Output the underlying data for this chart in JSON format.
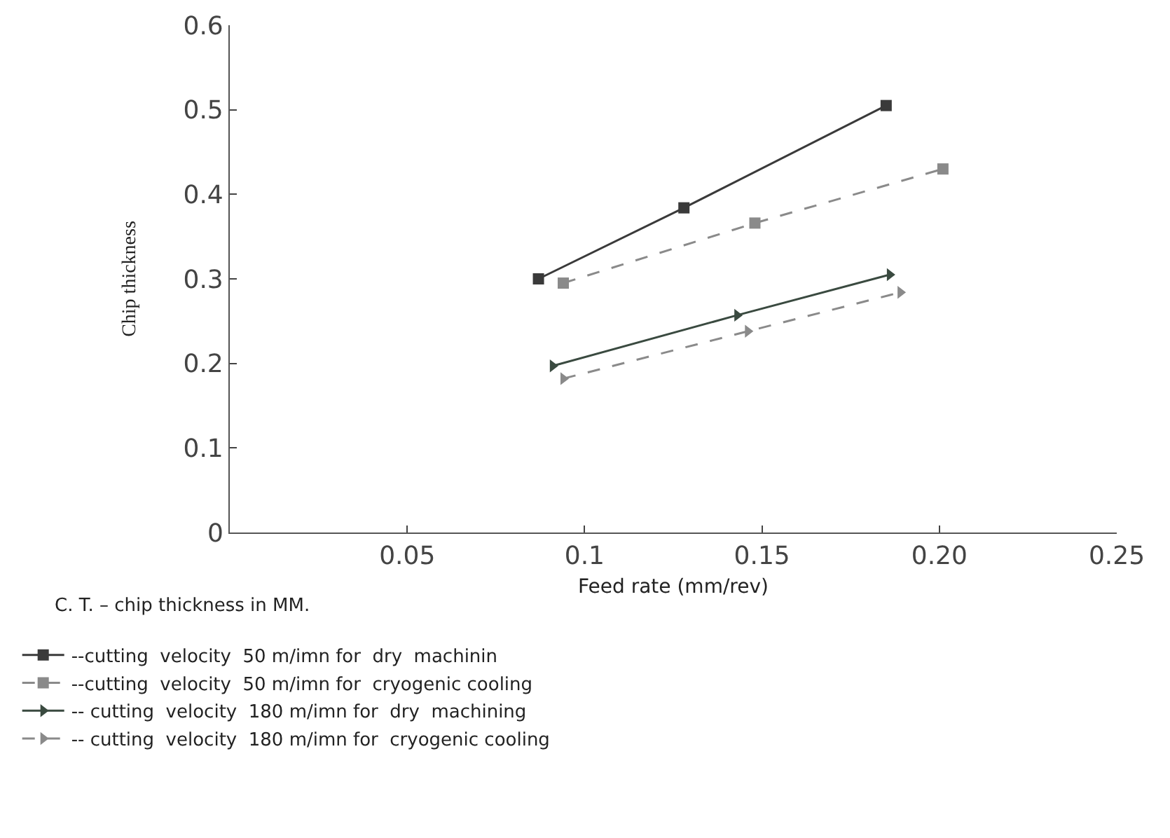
{
  "chart_data": {
    "type": "line",
    "xlabel": "Feed rate (mm/rev)",
    "ylabel": "Chip thickness",
    "xlim": [
      0,
      0.25
    ],
    "xticks": [
      {
        "value": 0,
        "label": null
      },
      0.05,
      0.1,
      0.15,
      {
        "value": 0.2,
        "label": "0.20"
      },
      0.25
    ],
    "ylim": [
      0,
      0.6
    ],
    "yticks": [
      0,
      0.1,
      0.2,
      0.3,
      0.4,
      0.5,
      0.6
    ],
    "grid": false,
    "legend": "bottom",
    "annotations": [
      "C. T. – chip thickness in MM."
    ],
    "series": [
      {
        "name": "--cutting  velocity  50 m/imn for  dry  machinin",
        "color": "#3a3a3a",
        "marker": "square",
        "line_style": "solid",
        "x": [
          0.087,
          0.128,
          0.185
        ],
        "values": [
          0.3,
          0.384,
          0.505
        ]
      },
      {
        "name": "--cutting  velocity  50 m/imn for  cryogenic cooling",
        "color": "#8a8a8a",
        "marker": "square",
        "line_style": "dashed",
        "x": [
          0.094,
          0.148,
          0.201
        ],
        "values": [
          0.295,
          0.366,
          0.43
        ]
      },
      {
        "name": "-- cutting  velocity  180 m/imn for  dry  machining",
        "color": "#3a4a40",
        "marker": "triangle",
        "line_style": "solid",
        "x": [
          0.091,
          0.143,
          0.186
        ],
        "values": [
          0.197,
          0.257,
          0.305
        ]
      },
      {
        "name": "-- cutting  velocity  180 m/imn for  cryogenic cooling",
        "color": "#8a8a8a",
        "marker": "triangle",
        "line_style": "dashed",
        "x": [
          0.094,
          0.146,
          0.189
        ],
        "values": [
          0.182,
          0.238,
          0.284
        ]
      }
    ]
  }
}
